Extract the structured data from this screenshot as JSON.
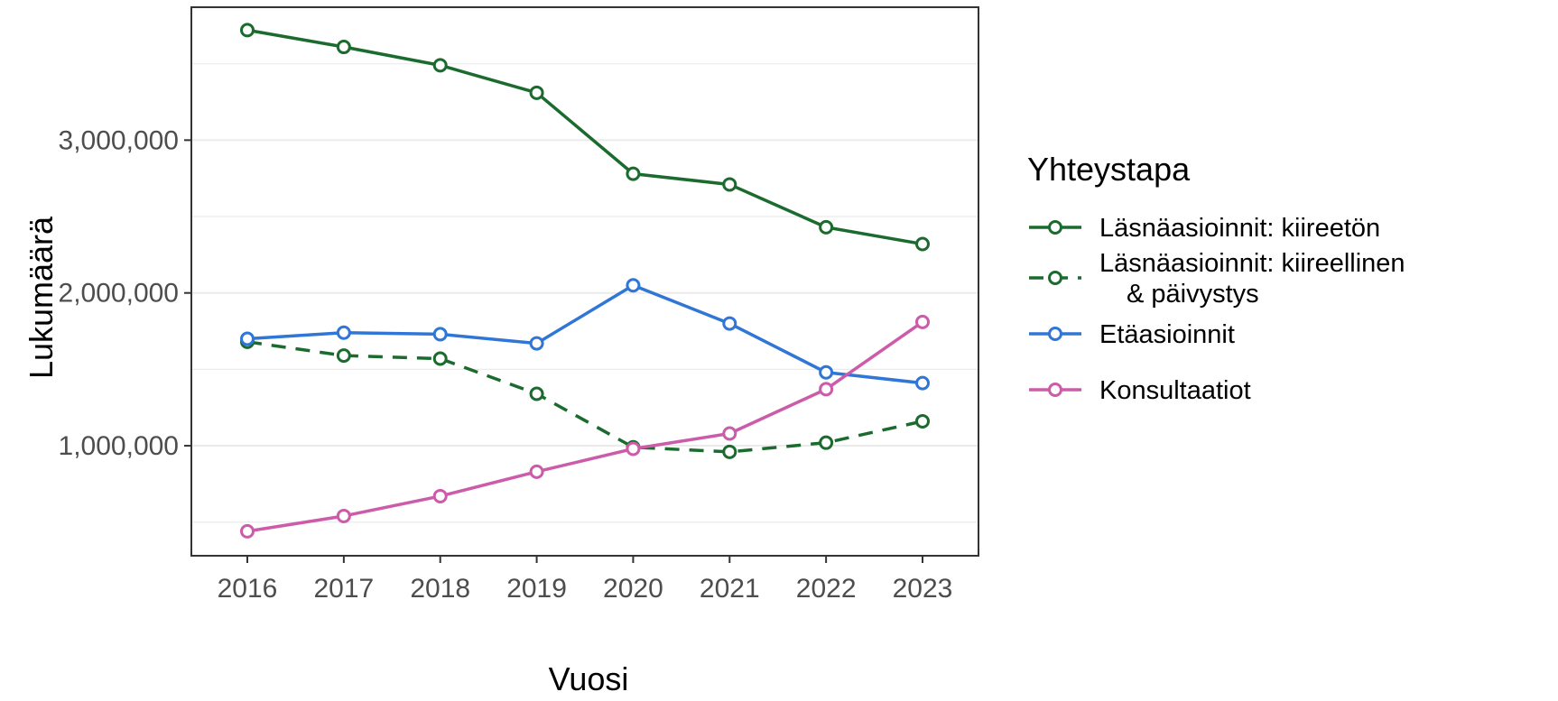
{
  "chart_data": {
    "type": "line",
    "xlabel": "Vuosi",
    "ylabel": "Lukumäärä",
    "x": [
      2016,
      2017,
      2018,
      2019,
      2020,
      2021,
      2022,
      2023
    ],
    "ylim": [
      280000,
      3870000
    ],
    "yticks": [
      1000000,
      2000000,
      3000000
    ],
    "ytick_labels": [
      "1,000,000",
      "2,000,000",
      "3,000,000"
    ],
    "grid": true,
    "legend_title": "Yhteystapa",
    "legend_position": "right",
    "series": [
      {
        "name": "Läsnäasioinnit: kiireetön",
        "label_lines": [
          "Läsnäasioinnit: kiireetön"
        ],
        "color": "#1b6b2f",
        "dash": "solid",
        "values": [
          3720000,
          3610000,
          3490000,
          3310000,
          2780000,
          2710000,
          2430000,
          2320000
        ]
      },
      {
        "name": "Läsnäasioinnit: kiireellinen & päivystys",
        "label_lines": [
          "Läsnäasioinnit: kiireellinen",
          "& päivystys"
        ],
        "color": "#1b6b2f",
        "dash": "dashed",
        "values": [
          1680000,
          1590000,
          1570000,
          1340000,
          990000,
          960000,
          1020000,
          1160000
        ]
      },
      {
        "name": "Etäasioinnit",
        "label_lines": [
          "Etäasioinnit"
        ],
        "color": "#2f76d6",
        "dash": "solid",
        "values": [
          1700000,
          1740000,
          1730000,
          1670000,
          2050000,
          1800000,
          1480000,
          1410000
        ]
      },
      {
        "name": "Konsultaatiot",
        "label_lines": [
          "Konsultaatiot"
        ],
        "color": "#cc5ba9",
        "dash": "solid",
        "values": [
          440000,
          540000,
          670000,
          830000,
          980000,
          1080000,
          1370000,
          1810000
        ]
      }
    ]
  }
}
